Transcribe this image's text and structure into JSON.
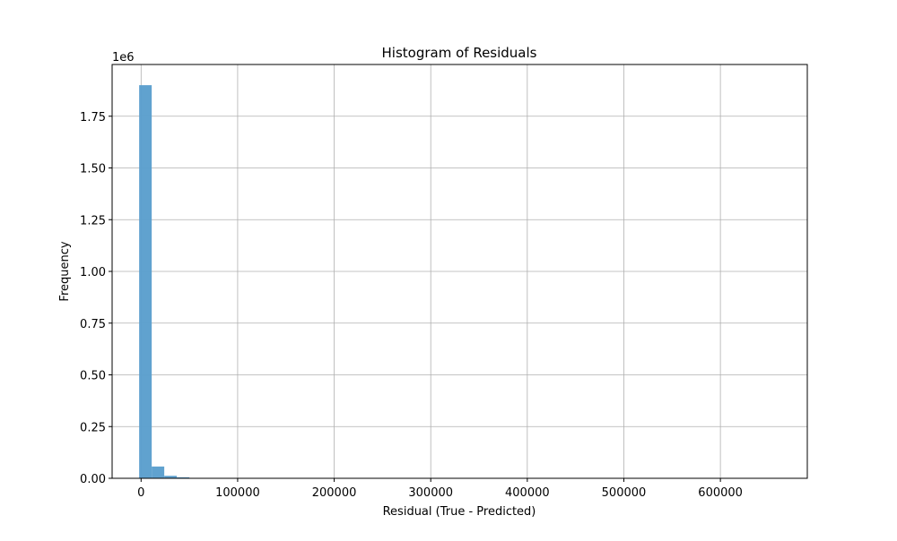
{
  "chart_data": {
    "type": "bar",
    "title": "Histogram of Residuals",
    "xlabel": "Residual (True - Predicted)",
    "ylabel": "Frequency",
    "y_offset_label": "1e6",
    "xlim": [
      -30000,
      690000
    ],
    "ylim": [
      0,
      2.0
    ],
    "grid": true,
    "bar_color": "#5b9fcd",
    "bin_width": 13000,
    "bins": [
      {
        "x0": -2000,
        "x1": 11000,
        "value": 1.9
      },
      {
        "x0": 11000,
        "x1": 24000,
        "value": 0.057
      },
      {
        "x0": 24000,
        "x1": 37000,
        "value": 0.012
      },
      {
        "x0": 37000,
        "x1": 50000,
        "value": 0.005
      },
      {
        "x0": 50000,
        "x1": 63000,
        "value": 0.002
      },
      {
        "x0": 63000,
        "x1": 76000,
        "value": 0.001
      },
      {
        "x0": 76000,
        "x1": 89000,
        "value": 0.0005
      }
    ],
    "x_ticks": [
      0,
      100000,
      200000,
      300000,
      400000,
      500000,
      600000
    ],
    "x_tick_labels": [
      "0",
      "100000",
      "200000",
      "300000",
      "400000",
      "500000",
      "600000"
    ],
    "y_ticks": [
      0,
      0.25,
      0.5,
      0.75,
      1.0,
      1.25,
      1.5,
      1.75
    ],
    "y_tick_labels": [
      "0.00",
      "0.25",
      "0.50",
      "0.75",
      "1.00",
      "1.25",
      "1.50",
      "1.75"
    ]
  }
}
